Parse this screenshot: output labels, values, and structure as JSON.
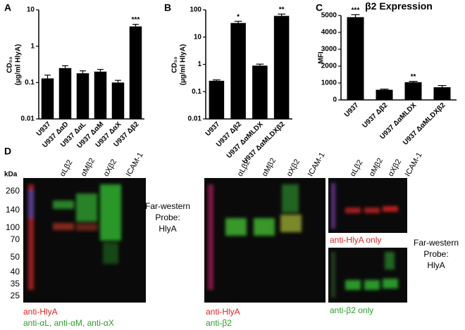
{
  "chart_data": [
    {
      "type": "bar",
      "panel": "A",
      "ylabel": [
        "CD₅₀",
        "(µg/ml HlyA)"
      ],
      "log": true,
      "color": "#000000",
      "categories": [
        "U937",
        "U937 ΔαD",
        "U937 ΔαL",
        "U937 ΔαM",
        "U937 ΔαX",
        "U937 Δβ2"
      ],
      "values": [
        0.13,
        0.25,
        0.18,
        0.2,
        0.1,
        3.5
      ],
      "errors": [
        0.03,
        0.04,
        0.03,
        0.03,
        0.015,
        0.5
      ],
      "significance": [
        null,
        null,
        null,
        null,
        null,
        "***"
      ],
      "ylim": [
        0.01,
        10
      ],
      "yticks": [
        0.01,
        0.1,
        1,
        10
      ]
    },
    {
      "type": "bar",
      "panel": "B",
      "ylabel": [
        "CD₅₀",
        "(µg/ml HlyA)"
      ],
      "log": true,
      "color": "#000000",
      "categories": [
        "U937",
        "U937 Δβ2",
        "U937 ΔαMLDX",
        "U937 ΔαMLDXβ2"
      ],
      "values": [
        0.25,
        33,
        0.9,
        60
      ],
      "errors": [
        0.02,
        5,
        0.12,
        10
      ],
      "significance": [
        null,
        "*",
        null,
        "**"
      ],
      "ylim": [
        0.01,
        100
      ],
      "yticks": [
        0.01,
        0.1,
        1,
        10,
        100
      ]
    },
    {
      "type": "bar",
      "panel": "C",
      "title": "β2 Expression",
      "ylabel": [
        "MFI"
      ],
      "log": false,
      "color": "#000000",
      "categories": [
        "U937",
        "U937 Δβ2",
        "U937 ΔαMLDX",
        "U937 ΔαMLDXβ2"
      ],
      "values": [
        4900,
        600,
        1050,
        750
      ],
      "errors": [
        150,
        40,
        50,
        100
      ],
      "significance": [
        "***",
        null,
        "**",
        null
      ],
      "ylim": [
        0,
        5000
      ],
      "yticks": [
        0,
        1000,
        2000,
        3000,
        4000,
        5000
      ]
    }
  ],
  "blots": {
    "panel": "D",
    "unit": "kDa",
    "markers": [
      260,
      140,
      100,
      70,
      50,
      40,
      35,
      25
    ],
    "lanes": [
      "αLβ2",
      "αMβ2",
      "αXβ2",
      "ICAM-1"
    ],
    "note": [
      "Far-western",
      "Probe:",
      "HlyA"
    ],
    "blot1_legend": [
      "anti-HlyA",
      "anti-αL, anti-αM, anti-αX"
    ],
    "blot2_legend": [
      "anti-HlyA",
      "anti-β2"
    ],
    "blot3_top": "anti-HlyA only",
    "blot3_bottom": "anti-β2 only"
  }
}
